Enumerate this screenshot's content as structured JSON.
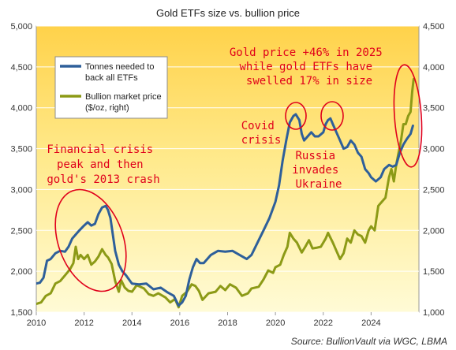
{
  "chart_data": {
    "type": "line",
    "title": "Gold ETFs size vs. bullion price",
    "xlim": [
      2010,
      2026
    ],
    "x_ticks": [
      "2010",
      "2012",
      "2014",
      "2016",
      "2018",
      "2020",
      "2022",
      "2024"
    ],
    "y_left": {
      "lim": [
        1500,
        5000
      ],
      "ticks": [
        "1,500",
        "2,000",
        "2,500",
        "3,000",
        "3,500",
        "4,000",
        "4,500",
        "5,000"
      ]
    },
    "y_right": {
      "lim": [
        1000,
        4500
      ],
      "ticks": [
        "1,000",
        "1,500",
        "2,000",
        "2,500",
        "3,000",
        "3,500",
        "4,000",
        "4,500"
      ]
    },
    "series": [
      {
        "name": "Tonnes needed to back all ETFs",
        "axis": "left",
        "color": "#2e5f9a",
        "points": [
          [
            2010.0,
            1850
          ],
          [
            2010.15,
            1860
          ],
          [
            2010.3,
            1920
          ],
          [
            2010.45,
            2130
          ],
          [
            2010.6,
            2150
          ],
          [
            2010.8,
            2220
          ],
          [
            2011.0,
            2250
          ],
          [
            2011.2,
            2240
          ],
          [
            2011.35,
            2300
          ],
          [
            2011.5,
            2400
          ],
          [
            2011.65,
            2450
          ],
          [
            2011.8,
            2500
          ],
          [
            2012.0,
            2560
          ],
          [
            2012.15,
            2600
          ],
          [
            2012.3,
            2560
          ],
          [
            2012.45,
            2580
          ],
          [
            2012.6,
            2700
          ],
          [
            2012.75,
            2780
          ],
          [
            2012.9,
            2800
          ],
          [
            2013.0,
            2750
          ],
          [
            2013.1,
            2650
          ],
          [
            2013.2,
            2450
          ],
          [
            2013.3,
            2250
          ],
          [
            2013.45,
            2080
          ],
          [
            2013.6,
            2000
          ],
          [
            2013.75,
            1950
          ],
          [
            2014.0,
            1850
          ],
          [
            2014.3,
            1840
          ],
          [
            2014.6,
            1850
          ],
          [
            2014.9,
            1780
          ],
          [
            2015.2,
            1800
          ],
          [
            2015.5,
            1740
          ],
          [
            2015.75,
            1700
          ],
          [
            2015.95,
            1580
          ],
          [
            2016.1,
            1620
          ],
          [
            2016.25,
            1700
          ],
          [
            2016.4,
            1900
          ],
          [
            2016.55,
            2050
          ],
          [
            2016.7,
            2150
          ],
          [
            2016.85,
            2100
          ],
          [
            2017.0,
            2100
          ],
          [
            2017.3,
            2200
          ],
          [
            2017.6,
            2250
          ],
          [
            2017.9,
            2240
          ],
          [
            2018.2,
            2250
          ],
          [
            2018.5,
            2200
          ],
          [
            2018.8,
            2150
          ],
          [
            2019.0,
            2200
          ],
          [
            2019.25,
            2350
          ],
          [
            2019.5,
            2500
          ],
          [
            2019.75,
            2650
          ],
          [
            2020.0,
            2850
          ],
          [
            2020.15,
            3050
          ],
          [
            2020.3,
            3350
          ],
          [
            2020.45,
            3600
          ],
          [
            2020.6,
            3820
          ],
          [
            2020.75,
            3900
          ],
          [
            2020.85,
            3920
          ],
          [
            2021.0,
            3850
          ],
          [
            2021.1,
            3680
          ],
          [
            2021.2,
            3600
          ],
          [
            2021.35,
            3650
          ],
          [
            2021.5,
            3700
          ],
          [
            2021.65,
            3650
          ],
          [
            2021.8,
            3650
          ],
          [
            2022.0,
            3700
          ],
          [
            2022.1,
            3800
          ],
          [
            2022.2,
            3850
          ],
          [
            2022.3,
            3870
          ],
          [
            2022.4,
            3800
          ],
          [
            2022.55,
            3700
          ],
          [
            2022.7,
            3600
          ],
          [
            2022.85,
            3500
          ],
          [
            2023.0,
            3520
          ],
          [
            2023.15,
            3600
          ],
          [
            2023.3,
            3550
          ],
          [
            2023.45,
            3450
          ],
          [
            2023.6,
            3400
          ],
          [
            2023.75,
            3250
          ],
          [
            2023.9,
            3200
          ],
          [
            2024.0,
            3150
          ],
          [
            2024.2,
            3100
          ],
          [
            2024.4,
            3150
          ],
          [
            2024.55,
            3250
          ],
          [
            2024.75,
            3300
          ],
          [
            2024.9,
            3280
          ],
          [
            2025.05,
            3300
          ],
          [
            2025.2,
            3450
          ],
          [
            2025.35,
            3550
          ],
          [
            2025.5,
            3620
          ],
          [
            2025.65,
            3680
          ],
          [
            2025.75,
            3780
          ]
        ]
      },
      {
        "name": "Bullion market price ($/oz, right)",
        "axis": "right",
        "color": "#8c9a16",
        "points": [
          [
            2010.0,
            1100
          ],
          [
            2010.2,
            1120
          ],
          [
            2010.4,
            1200
          ],
          [
            2010.6,
            1230
          ],
          [
            2010.8,
            1350
          ],
          [
            2011.0,
            1380
          ],
          [
            2011.2,
            1450
          ],
          [
            2011.4,
            1520
          ],
          [
            2011.55,
            1600
          ],
          [
            2011.65,
            1800
          ],
          [
            2011.75,
            1650
          ],
          [
            2011.85,
            1700
          ],
          [
            2012.0,
            1650
          ],
          [
            2012.15,
            1700
          ],
          [
            2012.3,
            1580
          ],
          [
            2012.45,
            1620
          ],
          [
            2012.6,
            1680
          ],
          [
            2012.75,
            1770
          ],
          [
            2012.9,
            1700
          ],
          [
            2013.0,
            1670
          ],
          [
            2013.15,
            1590
          ],
          [
            2013.3,
            1380
          ],
          [
            2013.45,
            1250
          ],
          [
            2013.55,
            1390
          ],
          [
            2013.7,
            1300
          ],
          [
            2013.85,
            1260
          ],
          [
            2014.0,
            1250
          ],
          [
            2014.2,
            1330
          ],
          [
            2014.5,
            1290
          ],
          [
            2014.7,
            1220
          ],
          [
            2014.9,
            1200
          ],
          [
            2015.1,
            1230
          ],
          [
            2015.4,
            1180
          ],
          [
            2015.6,
            1120
          ],
          [
            2015.8,
            1160
          ],
          [
            2015.95,
            1060
          ],
          [
            2016.1,
            1200
          ],
          [
            2016.3,
            1250
          ],
          [
            2016.5,
            1340
          ],
          [
            2016.65,
            1320
          ],
          [
            2016.8,
            1260
          ],
          [
            2016.95,
            1150
          ],
          [
            2017.2,
            1230
          ],
          [
            2017.5,
            1250
          ],
          [
            2017.7,
            1320
          ],
          [
            2017.9,
            1270
          ],
          [
            2018.1,
            1340
          ],
          [
            2018.35,
            1300
          ],
          [
            2018.6,
            1200
          ],
          [
            2018.85,
            1230
          ],
          [
            2019.0,
            1290
          ],
          [
            2019.3,
            1310
          ],
          [
            2019.5,
            1400
          ],
          [
            2019.7,
            1510
          ],
          [
            2019.9,
            1480
          ],
          [
            2020.0,
            1550
          ],
          [
            2020.2,
            1580
          ],
          [
            2020.35,
            1700
          ],
          [
            2020.5,
            1800
          ],
          [
            2020.6,
            1970
          ],
          [
            2020.75,
            1900
          ],
          [
            2020.9,
            1850
          ],
          [
            2021.1,
            1730
          ],
          [
            2021.25,
            1800
          ],
          [
            2021.4,
            1880
          ],
          [
            2021.55,
            1780
          ],
          [
            2021.75,
            1790
          ],
          [
            2021.9,
            1800
          ],
          [
            2022.1,
            1900
          ],
          [
            2022.2,
            1970
          ],
          [
            2022.4,
            1850
          ],
          [
            2022.55,
            1750
          ],
          [
            2022.7,
            1650
          ],
          [
            2022.85,
            1720
          ],
          [
            2023.0,
            1900
          ],
          [
            2023.15,
            1850
          ],
          [
            2023.3,
            2000
          ],
          [
            2023.45,
            1950
          ],
          [
            2023.6,
            1930
          ],
          [
            2023.75,
            1850
          ],
          [
            2023.9,
            2000
          ],
          [
            2024.0,
            2050
          ],
          [
            2024.15,
            2000
          ],
          [
            2024.3,
            2300
          ],
          [
            2024.45,
            2350
          ],
          [
            2024.6,
            2400
          ],
          [
            2024.75,
            2650
          ],
          [
            2024.85,
            2750
          ],
          [
            2024.95,
            2600
          ],
          [
            2025.05,
            2800
          ],
          [
            2025.15,
            2950
          ],
          [
            2025.25,
            3100
          ],
          [
            2025.35,
            3300
          ],
          [
            2025.45,
            3300
          ],
          [
            2025.55,
            3400
          ],
          [
            2025.65,
            3450
          ],
          [
            2025.72,
            3700
          ],
          [
            2025.78,
            3850
          ]
        ]
      }
    ],
    "legend": {
      "placement": "top-left"
    },
    "annotations": [
      {
        "lines": [
          "Gold price +46% in 2025",
          "while gold ETFs have",
          "swelled 17% in size"
        ],
        "color": "#e0001b"
      },
      {
        "lines": [
          "Covid",
          "crisis"
        ],
        "color": "#e0001b"
      },
      {
        "lines": [
          "Russia",
          "invades",
          "Ukraine"
        ],
        "color": "#e0001b"
      },
      {
        "lines": [
          "Financial crisis",
          "peak and then",
          "gold's 2013 crash"
        ],
        "color": "#e0001b"
      }
    ],
    "source": "Source: BullionVault via WGC, LBMA",
    "grid": true,
    "background": {
      "top": "#ffd24a",
      "bottom": "#fffbd6"
    }
  }
}
